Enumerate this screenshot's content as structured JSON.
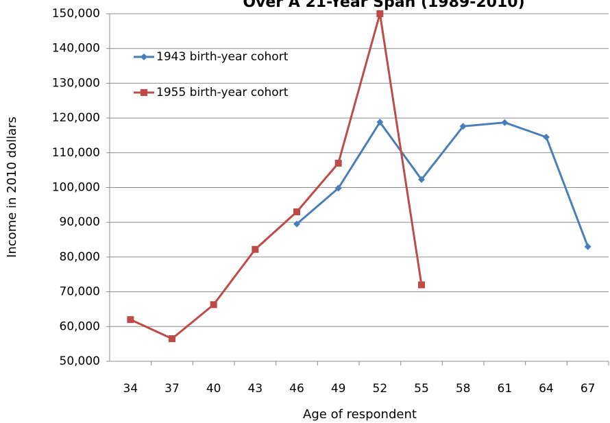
{
  "chart_data": {
    "type": "line",
    "title": "Over A 21-Year Span (1989-2010)",
    "x_label": "Age of respondent",
    "y_label": "Income in 2010 dollars",
    "categories": [
      "34",
      "37",
      "40",
      "43",
      "46",
      "49",
      "52",
      "55",
      "58",
      "61",
      "64",
      "67"
    ],
    "series": [
      {
        "name": "1943 birth-year cohort",
        "color": "#4a7ebb",
        "marker": "diamond",
        "values": [
          null,
          null,
          null,
          null,
          89500,
          99800,
          118800,
          102300,
          117600,
          118700,
          114500,
          83000
        ]
      },
      {
        "name": "1955 birth-year cohort",
        "color": "#be4b48",
        "marker": "square",
        "values": [
          62000,
          56500,
          66300,
          82200,
          93000,
          107000,
          150000,
          72000,
          null,
          null,
          null,
          null
        ]
      }
    ],
    "ylim": [
      50000,
      150000
    ],
    "yticks": [
      {
        "value": 50000,
        "label": "50,000"
      },
      {
        "value": 60000,
        "label": "60,000"
      },
      {
        "value": 70000,
        "label": "70,000"
      },
      {
        "value": 80000,
        "label": "80,000"
      },
      {
        "value": 90000,
        "label": "90,000"
      },
      {
        "value": 100000,
        "label": "100,000"
      },
      {
        "value": 110000,
        "label": "110,000"
      },
      {
        "value": 120000,
        "label": "120,000"
      },
      {
        "value": 130000,
        "label": "130,000"
      },
      {
        "value": 140000,
        "label": "140,000"
      },
      {
        "value": 150000,
        "label": "150,000"
      }
    ],
    "grid": true
  }
}
